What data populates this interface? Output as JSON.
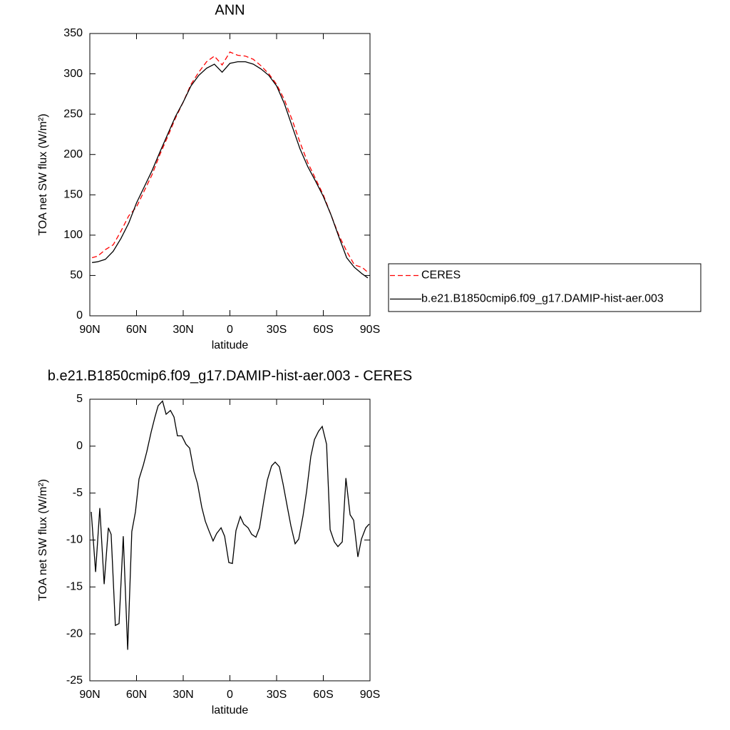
{
  "chart_data": [
    {
      "type": "line",
      "title": "ANN",
      "x_label": "latitude",
      "y_label": "TOA net SW flux (W/m²)",
      "xlim": [
        90,
        -90
      ],
      "ylim": [
        0,
        350
      ],
      "xticks": [
        {
          "value": 90,
          "label": "90N"
        },
        {
          "value": 60,
          "label": "60N"
        },
        {
          "value": 30,
          "label": "30N"
        },
        0,
        {
          "value": -30,
          "label": "30S"
        },
        {
          "value": -60,
          "label": "60S"
        },
        {
          "value": -90,
          "label": "90S"
        }
      ],
      "yticks": [
        0,
        50,
        100,
        150,
        200,
        250,
        300,
        350
      ],
      "legend": "right",
      "x": [
        88.6,
        85,
        80,
        75,
        70,
        65,
        60,
        55,
        50,
        45,
        40,
        35,
        30,
        25,
        20,
        15,
        10,
        5,
        0,
        -5,
        -10,
        -15,
        -20,
        -25,
        -30,
        -35,
        -40,
        -45,
        -50,
        -55,
        -60,
        -65,
        -70,
        -75,
        -80,
        -85,
        -88.6
      ],
      "series": [
        {
          "name": "CERES",
          "color": "#ff0000",
          "line_style": "dashed",
          "values": [
            72,
            74,
            82,
            88,
            105,
            124,
            135,
            155,
            175,
            200,
            222,
            245,
            265,
            287,
            302,
            315,
            322,
            311,
            327,
            323,
            322,
            318,
            310,
            300,
            287,
            268,
            243,
            215,
            190,
            170,
            150,
            125,
            100,
            80,
            63,
            60,
            54
          ]
        },
        {
          "name": "b.e21.B1850cmip6.f09_g17.DAMIP-hist-aer.003",
          "color": "#000000",
          "line_style": "solid",
          "values": [
            66,
            67,
            70,
            80,
            96,
            115,
            140,
            160,
            180,
            203,
            225,
            247,
            265,
            285,
            298,
            307,
            312,
            302,
            313,
            315,
            315,
            312,
            306,
            298,
            285,
            263,
            235,
            207,
            185,
            167,
            148,
            125,
            98,
            72,
            60,
            52,
            47
          ]
        }
      ]
    },
    {
      "type": "line",
      "title": "b.e21.B1850cmip6.f09_g17.DAMIP-hist-aer.003 - CERES",
      "x_label": "latitude",
      "y_label": "TOA net SW flux (W/m²)",
      "xlim": [
        90,
        -90
      ],
      "ylim": [
        -25,
        5
      ],
      "xticks": [
        {
          "value": 90,
          "label": "90N"
        },
        {
          "value": 60,
          "label": "60N"
        },
        {
          "value": 30,
          "label": "30N"
        },
        0,
        {
          "value": -30,
          "label": "30S"
        },
        {
          "value": -60,
          "label": "60S"
        },
        {
          "value": -90,
          "label": "90S"
        }
      ],
      "yticks": [
        -25,
        -20,
        -15,
        -10,
        -5,
        0,
        5
      ],
      "x": [
        89.1,
        86.3,
        83.6,
        80.8,
        78.1,
        76.3,
        73.6,
        71.2,
        68.5,
        65.7,
        63.0,
        60.7,
        58.4,
        55.6,
        53.4,
        50.6,
        48.3,
        46.1,
        43.3,
        41.0,
        38.2,
        35.9,
        33.7,
        30.9,
        28.2,
        25.9,
        23.1,
        20.8,
        18.1,
        15.8,
        13.5,
        10.8,
        8.5,
        5.7,
        3.4,
        0.7,
        -1.6,
        -3.9,
        -6.7,
        -8.9,
        -11.7,
        -14.0,
        -16.7,
        -19.0,
        -21.8,
        -24.1,
        -26.8,
        -29.1,
        -31.8,
        -34.1,
        -36.9,
        -39.2,
        -41.9,
        -44.2,
        -47.0,
        -49.3,
        -52.0,
        -54.3,
        -57.0,
        -59.3,
        -62.1,
        -64.4,
        -67.1,
        -69.4,
        -72.2,
        -74.5,
        -77.2,
        -79.5,
        -82.2,
        -84.5,
        -87.3,
        -89.5
      ],
      "series": [
        {
          "name": "b.e21.B1850cmip6.f09_g17.DAMIP-hist-aer.003 - CERES",
          "color": "#000000",
          "line_style": "solid",
          "values": [
            -7.0,
            -13.4,
            -6.6,
            -14.7,
            -8.7,
            -9.4,
            -19.1,
            -18.9,
            -9.6,
            -21.7,
            -9.1,
            -7.0,
            -3.5,
            -2.0,
            -0.6,
            1.5,
            3.0,
            4.3,
            4.8,
            3.4,
            3.8,
            3.1,
            1.1,
            1.1,
            0.2,
            -0.2,
            -2.7,
            -4.0,
            -6.5,
            -8.0,
            -9.0,
            -10.1,
            -9.3,
            -8.7,
            -9.6,
            -12.4,
            -12.5,
            -9.0,
            -7.5,
            -8.3,
            -8.7,
            -9.4,
            -9.7,
            -8.7,
            -5.8,
            -3.6,
            -2.1,
            -1.7,
            -2.2,
            -4.0,
            -6.5,
            -8.5,
            -10.4,
            -9.9,
            -7.4,
            -4.8,
            -1.1,
            0.7,
            1.6,
            2.1,
            0.2,
            -8.9,
            -10.2,
            -10.7,
            -10.2,
            -3.4,
            -7.3,
            -7.9,
            -11.8,
            -9.9,
            -8.7,
            -8.3
          ]
        }
      ]
    }
  ]
}
